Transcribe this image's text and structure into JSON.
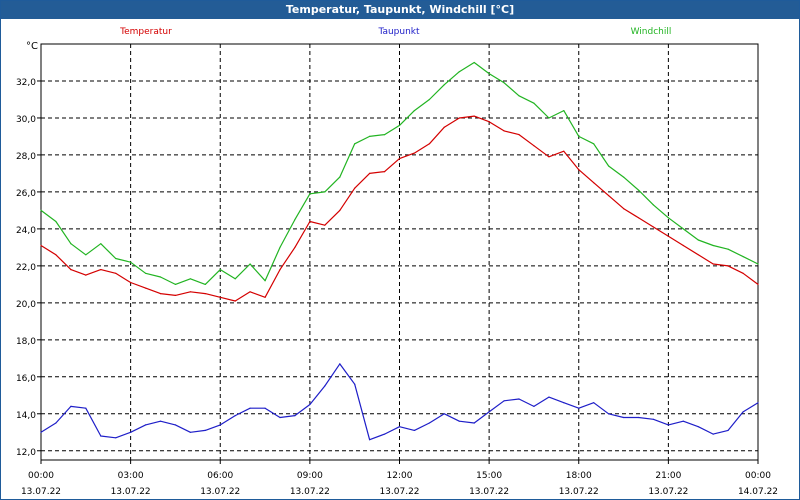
{
  "window": {
    "title": "Temperatur, Taupunkt, Windchill [°C]"
  },
  "chart_data": {
    "type": "line",
    "ylabel": "°C",
    "ylim": [
      11.5,
      34.0
    ],
    "yticks": [
      12.0,
      14.0,
      16.0,
      18.0,
      20.0,
      22.0,
      24.0,
      26.0,
      28.0,
      30.0,
      32.0
    ],
    "ytick_labels": [
      "12,0",
      "14,0",
      "16,0",
      "18,0",
      "20,0",
      "22,0",
      "24,0",
      "26,0",
      "28,0",
      "30,0",
      "32,0"
    ],
    "xlim": [
      0,
      24
    ],
    "xticks": [
      {
        "time": "00:00",
        "date": "13.07.22"
      },
      {
        "time": "03:00",
        "date": "13.07.22"
      },
      {
        "time": "06:00",
        "date": "13.07.22"
      },
      {
        "time": "09:00",
        "date": "13.07.22"
      },
      {
        "time": "12:00",
        "date": "13.07.22"
      },
      {
        "time": "15:00",
        "date": "13.07.22"
      },
      {
        "time": "18:00",
        "date": "13.07.22"
      },
      {
        "time": "21:00",
        "date": "13.07.22"
      },
      {
        "time": "00:00",
        "date": "14.07.22"
      }
    ],
    "grid": true,
    "legend_position": "top",
    "series": [
      {
        "name": "Temperatur",
        "color": "#d40000",
        "x": [
          0,
          0.5,
          1,
          1.5,
          2,
          2.5,
          3,
          3.5,
          4,
          4.5,
          5,
          5.5,
          6,
          6.5,
          7,
          7.5,
          8,
          8.5,
          9,
          9.5,
          10,
          10.5,
          11,
          11.5,
          12,
          12.5,
          13,
          13.5,
          14,
          14.5,
          15,
          15.5,
          16,
          16.5,
          17,
          17.5,
          18,
          18.5,
          19,
          19.5,
          20,
          20.5,
          21,
          21.5,
          22,
          22.5,
          23,
          23.5,
          24
        ],
        "values": [
          23.1,
          22.6,
          21.8,
          21.5,
          21.8,
          21.6,
          21.1,
          20.8,
          20.5,
          20.4,
          20.6,
          20.5,
          20.3,
          20.1,
          20.6,
          20.3,
          21.8,
          23.0,
          24.4,
          24.2,
          25.0,
          26.2,
          27.0,
          27.1,
          27.8,
          28.1,
          28.6,
          29.5,
          30.0,
          30.1,
          29.8,
          29.3,
          29.1,
          28.5,
          27.9,
          28.2,
          27.2,
          26.5,
          25.8,
          25.1,
          24.6,
          24.1,
          23.6,
          23.1,
          22.6,
          22.1,
          22.0,
          21.6,
          21.0
        ]
      },
      {
        "name": "Taupunkt",
        "color": "#1e1ec8",
        "x": [
          0,
          0.5,
          1,
          1.5,
          2,
          2.5,
          3,
          3.5,
          4,
          4.5,
          5,
          5.5,
          6,
          6.5,
          7,
          7.5,
          8,
          8.5,
          9,
          9.5,
          10,
          10.5,
          11,
          11.5,
          12,
          12.5,
          13,
          13.5,
          14,
          14.5,
          15,
          15.5,
          16,
          16.5,
          17,
          17.5,
          18,
          18.5,
          19,
          19.5,
          20,
          20.5,
          21,
          21.5,
          22,
          22.5,
          23,
          23.5,
          24
        ],
        "values": [
          13.0,
          13.5,
          14.4,
          14.3,
          12.8,
          12.7,
          13.0,
          13.4,
          13.6,
          13.4,
          13.0,
          13.1,
          13.4,
          13.9,
          14.3,
          14.3,
          13.8,
          13.9,
          14.5,
          15.5,
          16.7,
          15.6,
          12.6,
          12.9,
          13.3,
          13.1,
          13.5,
          14.0,
          13.6,
          13.5,
          14.1,
          14.7,
          14.8,
          14.4,
          14.9,
          14.6,
          14.3,
          14.6,
          14.0,
          13.8,
          13.8,
          13.7,
          13.4,
          13.6,
          13.3,
          12.9,
          13.1,
          14.1,
          14.6
        ]
      },
      {
        "name": "Windchill",
        "color": "#22b422",
        "x": [
          0,
          0.5,
          1,
          1.5,
          2,
          2.5,
          3,
          3.5,
          4,
          4.5,
          5,
          5.5,
          6,
          6.5,
          7,
          7.5,
          8,
          8.5,
          9,
          9.5,
          10,
          10.5,
          11,
          11.5,
          12,
          12.5,
          13,
          13.5,
          14,
          14.5,
          15,
          15.5,
          16,
          16.5,
          17,
          17.5,
          18,
          18.5,
          19,
          19.5,
          20,
          20.5,
          21,
          21.5,
          22,
          22.5,
          23,
          23.5,
          24
        ],
        "values": [
          25.0,
          24.4,
          23.2,
          22.6,
          23.2,
          22.4,
          22.2,
          21.6,
          21.4,
          21.0,
          21.3,
          21.0,
          21.8,
          21.3,
          22.1,
          21.2,
          23.0,
          24.5,
          25.9,
          26.0,
          26.8,
          28.6,
          29.0,
          29.1,
          29.6,
          30.4,
          31.0,
          31.8,
          32.5,
          33.0,
          32.4,
          31.9,
          31.2,
          30.8,
          30.0,
          30.4,
          29.0,
          28.6,
          27.4,
          26.8,
          26.1,
          25.3,
          24.6,
          24.0,
          23.4,
          23.1,
          22.9,
          22.5,
          22.1
        ]
      }
    ]
  }
}
